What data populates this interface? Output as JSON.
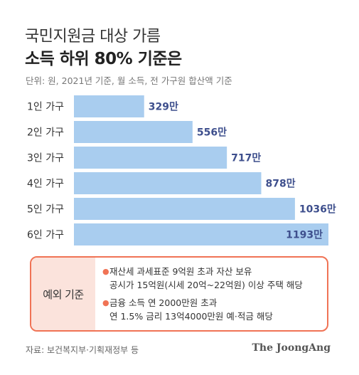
{
  "title_line1": "국민지원금 대상 가름",
  "title_line2": "소득 하위 80% 기준은",
  "unit_note": "단위: 원, 2021년 기준, 월 소득, 전 가구원 합산액 기준",
  "chart_data": {
    "type": "bar",
    "orientation": "horizontal",
    "categories": [
      "1인 가구",
      "2인 가구",
      "3인 가구",
      "4인 가구",
      "5인 가구",
      "6인 가구"
    ],
    "values": [
      329,
      556,
      717,
      878,
      1036,
      1193
    ],
    "value_labels": [
      "329만",
      "556만",
      "717만",
      "878만",
      "1036만",
      "1193만"
    ],
    "bar_color": "#a9cdef",
    "label_color": "#3e4f8d",
    "xlim": [
      0,
      1193
    ],
    "grid": false,
    "legend": "none"
  },
  "exceptions": {
    "label": "예외 기준",
    "items": [
      [
        "재산세 과세표준 9억원 초과 자산 보유",
        "공시가 15억원(시세 20억~22억원) 이상 주택 해당"
      ],
      [
        "금융 소득 연 2000만원 초과",
        "연 1.5% 금리 13억4000만원 예·적금 해당"
      ]
    ],
    "border_color": "#f07355",
    "label_bg": "#fbe3dc"
  },
  "source": "자료: 보건복지부·기획재정부 등",
  "brand": "The JoongAng"
}
